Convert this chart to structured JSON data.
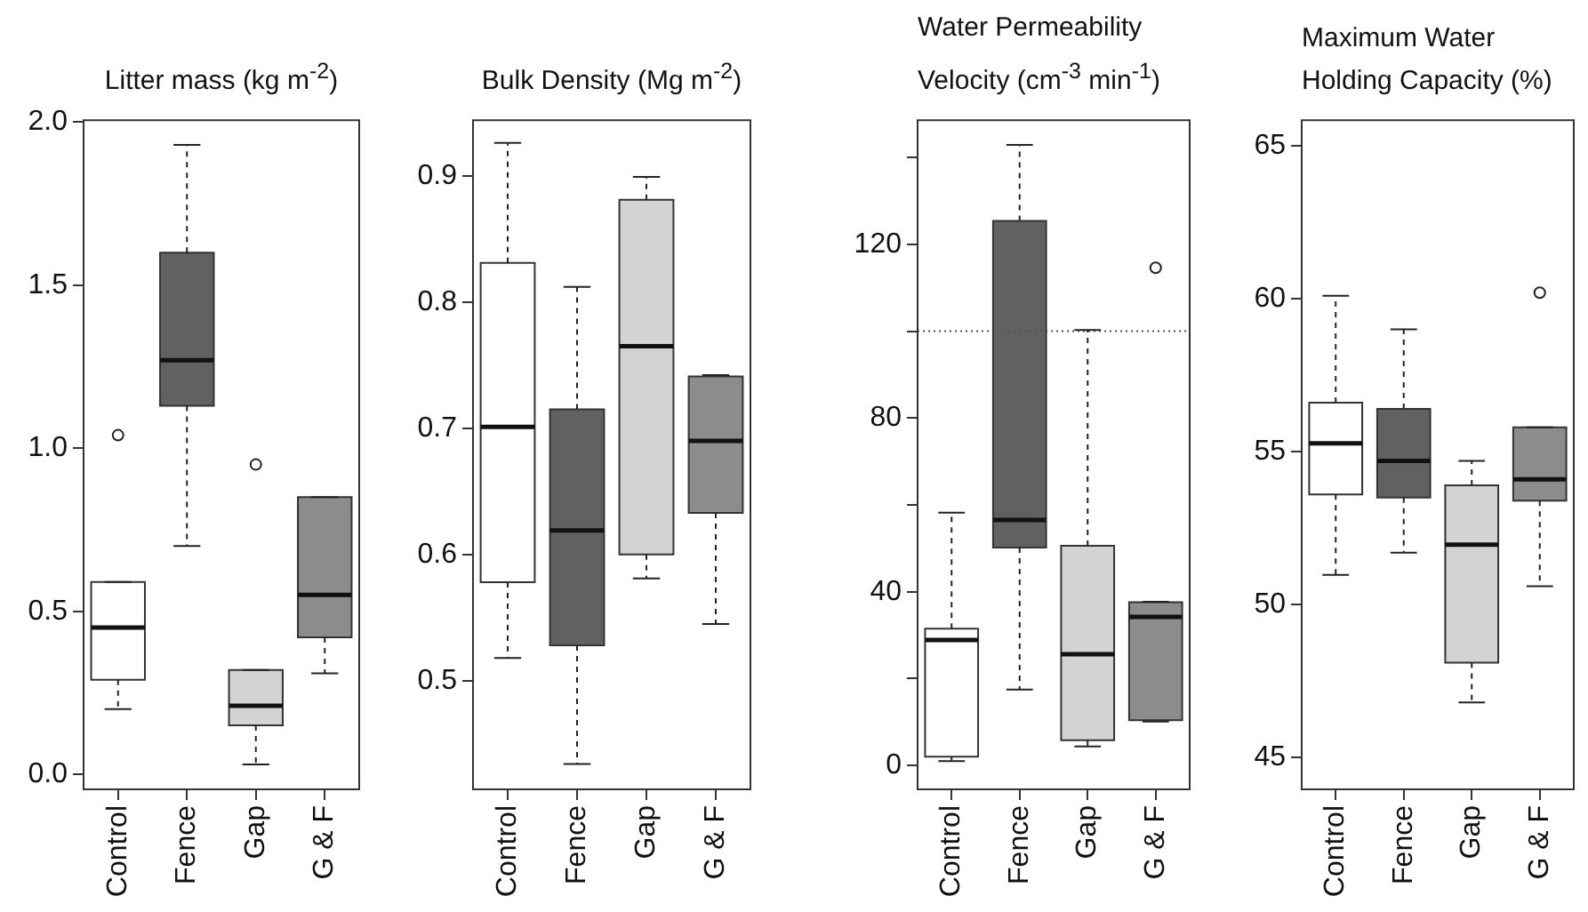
{
  "chart_data": [
    {
      "type": "box",
      "title": "Litter mass (kg m$^{-2}$)",
      "categories": [
        "Control",
        "Fence",
        "Gap",
        "G & F"
      ],
      "colors": [
        "#ffffff",
        "#616161",
        "#d3d3d3",
        "#8c8c8c"
      ],
      "boxes": [
        {
          "low": 0.2,
          "q1": 0.29,
          "median": 0.45,
          "q3": 0.59,
          "high": 0.59,
          "outliers": [
            1.04
          ]
        },
        {
          "low": 0.7,
          "q1": 1.13,
          "median": 1.27,
          "q3": 1.6,
          "high": 1.93
        },
        {
          "low": 0.03,
          "q1": 0.15,
          "median": 0.21,
          "q3": 0.32,
          "high": 0.32,
          "outliers": [
            0.95
          ]
        },
        {
          "low": 0.31,
          "q1": 0.42,
          "median": 0.55,
          "q3": 0.85,
          "high": 0.85
        }
      ],
      "ylim": [
        -0.046,
        2.006
      ],
      "yticks": [
        {
          "value": 0,
          "label": "0.0"
        },
        0.5,
        {
          "value": 1,
          "label": "1.0"
        },
        1.5,
        {
          "value": 2,
          "label": "2.0"
        }
      ]
    },
    {
      "type": "box",
      "title": "Bulk Density (Mg m$^{-2}$)",
      "categories": [
        "Control",
        "Fence",
        "Gap",
        "G & F"
      ],
      "colors": [
        "#ffffff",
        "#616161",
        "#d3d3d3",
        "#8c8c8c"
      ],
      "boxes": [
        {
          "low": 0.518,
          "q1": 0.578,
          "median": 0.701,
          "q3": 0.831,
          "high": 0.926
        },
        {
          "low": 0.434,
          "q1": 0.528,
          "median": 0.619,
          "q3": 0.715,
          "high": 0.812
        },
        {
          "low": 0.581,
          "q1": 0.6,
          "median": 0.765,
          "q3": 0.881,
          "high": 0.899
        },
        {
          "low": 0.545,
          "q1": 0.633,
          "median": 0.69,
          "q3": 0.741,
          "high": 0.742
        }
      ],
      "ylim": [
        0.414,
        0.944
      ],
      "yticks": [
        0.5,
        0.6,
        0.7,
        0.8,
        0.9
      ]
    },
    {
      "type": "box",
      "title": "Water Permeability\nVelocity (cm$^{-3}$ min$^{-1}$)",
      "categories": [
        "Control",
        "Fence",
        "Gap",
        "G & F"
      ],
      "colors": [
        "#ffffff",
        "#616161",
        "#d3d3d3",
        "#8c8c8c"
      ],
      "boxes": [
        {
          "low": 1,
          "q1": 2,
          "median": 28.9,
          "q3": 31.5,
          "high": 58.2
        },
        {
          "low": 17.5,
          "q1": 50.2,
          "median": 56.5,
          "q3": 125.4,
          "high": 142.9
        },
        {
          "low": 4.4,
          "q1": 5.8,
          "median": 25.6,
          "q3": 50.6,
          "high": 100.3
        },
        {
          "low": 10.1,
          "q1": 10.4,
          "median": 34.2,
          "q3": 37.6,
          "high": 37.7,
          "outliers": [
            114.6
          ]
        }
      ],
      "ylim": [
        -5.5,
        148.6
      ],
      "yticks": [
        0,
        {
          "value": 20,
          "label": null
        },
        40,
        {
          "value": 60,
          "label": null
        },
        80,
        {
          "value": 100,
          "label": null
        },
        120,
        {
          "value": 140,
          "label": null
        }
      ],
      "ref_lines": [
        {
          "axis": "y",
          "value": 100,
          "line_style": "dotted",
          "color": "#555555"
        }
      ]
    },
    {
      "type": "box",
      "title": "Maximum Water\nHolding Capacity (%)",
      "categories": [
        "Control",
        "Fence",
        "Gap",
        "G & F"
      ],
      "colors": [
        "#ffffff",
        "#616161",
        "#d3d3d3",
        "#8c8c8c"
      ],
      "boxes": [
        {
          "low": 50.97,
          "q1": 53.6,
          "median": 55.27,
          "q3": 56.6,
          "high": 60.1
        },
        {
          "low": 51.7,
          "q1": 53.5,
          "median": 54.7,
          "q3": 56.4,
          "high": 59.0
        },
        {
          "low": 46.8,
          "q1": 48.1,
          "median": 51.96,
          "q3": 53.9,
          "high": 54.7
        },
        {
          "low": 50.6,
          "q1": 53.4,
          "median": 54.1,
          "q3": 55.8,
          "high": 55.8,
          "outliers": [
            60.2
          ]
        }
      ],
      "ylim": [
        43.96,
        65.84
      ],
      "yticks": [
        45,
        50,
        55,
        60,
        65
      ]
    }
  ]
}
